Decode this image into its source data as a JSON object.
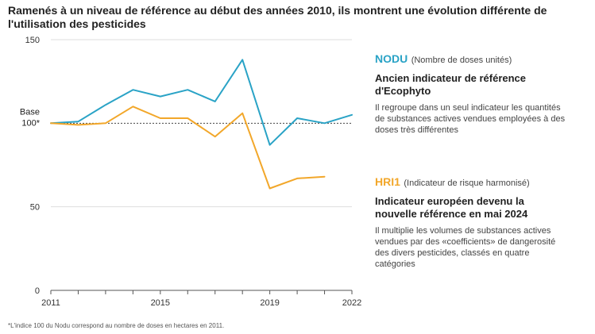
{
  "title": "Ramenés à un niveau de référence au début des années 2010,  ils montrent une évolution différente de l'utilisation des pesticides",
  "chart_data": {
    "type": "line",
    "x": [
      2011,
      2012,
      2013,
      2014,
      2015,
      2016,
      2017,
      2018,
      2019,
      2020,
      2021,
      2022
    ],
    "series": [
      {
        "name": "NODU",
        "color": "#2aa3c6",
        "values": [
          100,
          101,
          111,
          120,
          116,
          120,
          113,
          138,
          87,
          103,
          100,
          105
        ]
      },
      {
        "name": "HRI1",
        "color": "#f2a72a",
        "values": [
          100,
          99,
          100,
          110,
          103,
          103,
          92,
          106,
          61,
          67,
          68,
          null
        ]
      }
    ],
    "ylim": [
      0,
      150
    ],
    "yticks": [
      0,
      50,
      150
    ],
    "xticks": [
      "2011",
      "2015",
      "2019",
      "2022"
    ],
    "xtick_values": [
      2011,
      2015,
      2019,
      2022
    ],
    "reference_line": {
      "value": 100,
      "label_line1": "Base",
      "label_line2": "100*"
    }
  },
  "legend": {
    "nodu": {
      "name": "NODU",
      "subtitle": "(Nombre de doses unités)",
      "heading": "Ancien indicateur de référence d'Ecophyto",
      "description": "Il regroupe dans un seul indicateur les quantités de substances actives vendues employées à des doses très différentes"
    },
    "hri": {
      "name": "HRI1",
      "subtitle": "(Indicateur de risque harmonisé)",
      "heading": "Indicateur européen devenu la nouvelle référence en mai 2024",
      "description": "Il multiplie les volumes de substances actives vendues par des «coefficients» de dangerosité des divers pesticides, classés en quatre catégories"
    }
  },
  "footnote": "*L'indice 100 du Nodu correspond au nombre de doses en hectares en 2011."
}
